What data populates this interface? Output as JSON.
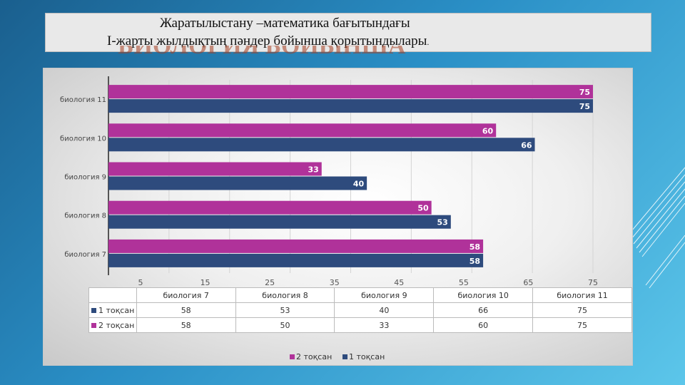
{
  "title": {
    "line1": "Жаратылыстану –математика бағытындағы",
    "line2": "І-жарты жылдықтың пәндер бойынша қорытындылары",
    "line2_suffix": ".",
    "ghost_text": "БИОЛОГИЯ БОЙЫНША"
  },
  "colors": {
    "series1": "#2e4b7d",
    "series2": "#b0329a"
  },
  "chart_data": {
    "type": "bar",
    "orientation": "horizontal",
    "categories": [
      "биология 7",
      "биология 8",
      "биология 9",
      "биология 10",
      "биология 11"
    ],
    "series": [
      {
        "name": "1 тоқсан",
        "values": [
          58,
          53,
          40,
          66,
          75
        ]
      },
      {
        "name": "2 тоқсан",
        "values": [
          58,
          50,
          33,
          60,
          75
        ]
      }
    ],
    "xlim": [
      0,
      75
    ],
    "x_ticks": [
      5,
      15,
      25,
      35,
      45,
      55,
      65,
      75
    ],
    "grid": true,
    "legend": "bottom",
    "data_table": true
  }
}
